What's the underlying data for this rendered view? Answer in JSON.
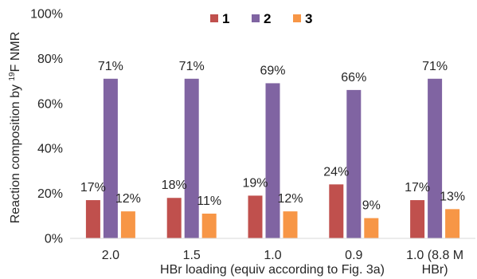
{
  "chart_data": {
    "type": "bar",
    "categories": [
      {
        "line1": "2.0",
        "line2": ""
      },
      {
        "line1": "1.5",
        "line2": ""
      },
      {
        "line1": "1.0",
        "line2": ""
      },
      {
        "line1": "0.9",
        "line2": ""
      },
      {
        "line1": "1.0 (8.8 M",
        "line2": "HBr)"
      }
    ],
    "series": [
      {
        "name": "1",
        "color": "#C0504D",
        "values": [
          17,
          18,
          19,
          24,
          17
        ],
        "labels": [
          "17%",
          "18%",
          "19%",
          "24%",
          "17%"
        ]
      },
      {
        "name": "2",
        "color": "#8064A2",
        "values": [
          71,
          71,
          69,
          66,
          71
        ],
        "labels": [
          "71%",
          "71%",
          "69%",
          "66%",
          "71%"
        ]
      },
      {
        "name": "3",
        "color": "#F79646",
        "values": [
          12,
          11,
          12,
          9,
          13
        ],
        "labels": [
          "12%",
          "11%",
          "12%",
          "9%",
          "13%"
        ]
      }
    ],
    "ylabel": "Reaction composition by ",
    "ylabel_sup": "19",
    "ylabel_tail": "F NMR",
    "xlabel": "HBr loading (equiv according to Fig. 3a)",
    "yticks": [
      "0%",
      "20%",
      "40%",
      "60%",
      "80%",
      "100%"
    ],
    "ylim": [
      0,
      100
    ],
    "grid": false,
    "legend": "top-center"
  }
}
